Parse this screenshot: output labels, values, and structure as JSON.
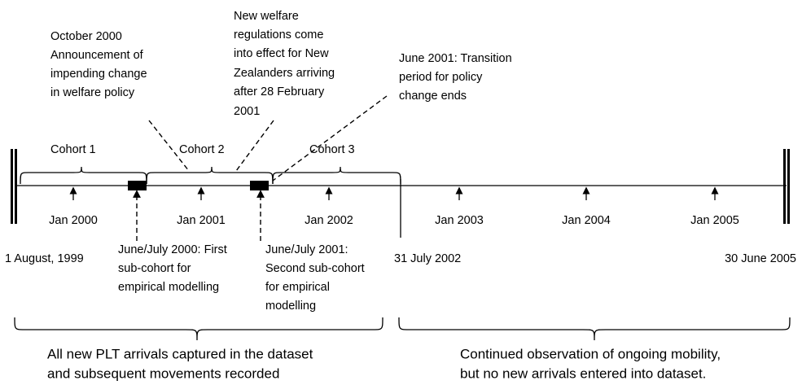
{
  "annotations": [
    {
      "lines": [
        "October 2000",
        "Announcement of",
        "impending change",
        "in welfare policy"
      ]
    },
    {
      "lines": [
        "New welfare",
        "regulations come",
        "into effect for New",
        "Zealanders arriving",
        "after 28 February",
        "2001"
      ]
    },
    {
      "lines": [
        "June 2001: Transition",
        "period for policy",
        "change ends"
      ]
    }
  ],
  "cohorts": [
    "Cohort 1",
    "Cohort 2",
    "Cohort 3"
  ],
  "year_ticks": [
    "Jan 2000",
    "Jan 2001",
    "Jan 2002",
    "Jan 2003",
    "Jan 2004",
    "Jan 2005"
  ],
  "dates": [
    "1 August, 1999",
    "31 July 2002",
    "30 June 2005"
  ],
  "sub_cohorts": [
    {
      "lines": [
        "June/July 2000: First",
        "sub-cohort for",
        "empirical modelling"
      ]
    },
    {
      "lines": [
        "June/July 2001:",
        "Second sub-cohort",
        "for empirical",
        "modelling"
      ]
    }
  ],
  "periods": [
    {
      "lines": [
        "All new PLT arrivals captured in the dataset",
        "and subsequent movements recorded"
      ]
    },
    {
      "lines": [
        "Continued observation of ongoing mobility,",
        "but no new arrivals entered into dataset."
      ]
    }
  ]
}
